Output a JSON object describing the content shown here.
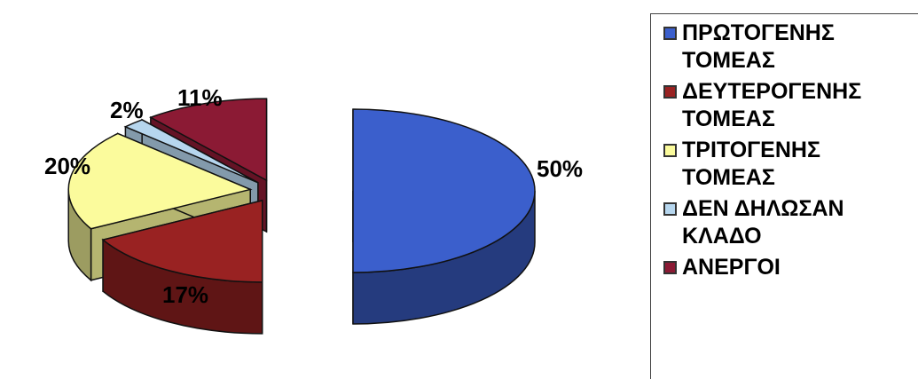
{
  "chart_data": {
    "type": "pie",
    "three_d": true,
    "exploded": true,
    "legend_position": "right",
    "slices": [
      {
        "label": "ΠΡΩΤΟΓΕΝΗΣ ΤΟΜΕΑΣ",
        "value": 50,
        "value_label": "50%",
        "color": "#3b5fcc"
      },
      {
        "label": "ΔΕΥΤΕΡΟΓΕΝΗΣ ΤΟΜΕΑΣ",
        "value": 17,
        "value_label": "17%",
        "color": "#992222"
      },
      {
        "label": "ΤΡΙΤΟΓΕΝΗΣ ΤΟΜΕΑΣ",
        "value": 20,
        "value_label": "20%",
        "color": "#fbfb9c"
      },
      {
        "label": "ΔΕΝ ΔΗΛΩΣΑΝ ΚΛΑΔΟ",
        "value": 2,
        "value_label": "2%",
        "color": "#b6d6ee"
      },
      {
        "label": "ΑΝΕΡΓΟΙ",
        "value": 11,
        "value_label": "11%",
        "color": "#8b1a34"
      }
    ]
  }
}
